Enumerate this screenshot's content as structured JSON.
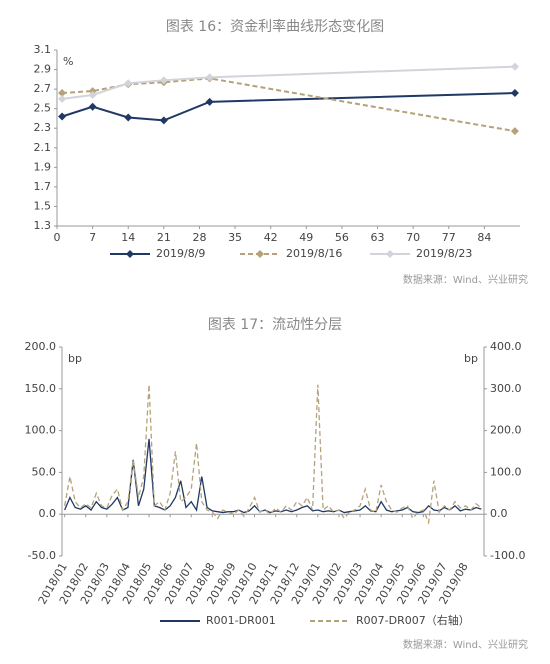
{
  "chart_data": [
    {
      "type": "line",
      "title": "图表 16：资金利率曲线形态变化图",
      "ylabel": "%",
      "x": [
        1,
        7,
        14,
        21,
        30,
        90
      ],
      "xlim": [
        0,
        91
      ],
      "xticks": [
        0,
        7,
        14,
        21,
        28,
        35,
        42,
        49,
        56,
        63,
        70,
        77,
        84
      ],
      "ylim": [
        1.3,
        3.1
      ],
      "yticks": [
        1.3,
        1.5,
        1.7,
        1.9,
        2.1,
        2.3,
        2.5,
        2.7,
        2.9,
        3.1
      ],
      "series": [
        {
          "name": "2019/8/9",
          "color": "#1f3864",
          "dashed": false,
          "values": [
            2.42,
            2.52,
            2.41,
            2.38,
            2.57,
            2.66
          ]
        },
        {
          "name": "2019/8/16",
          "color": "#b5a27a",
          "dashed": true,
          "values": [
            2.66,
            2.68,
            2.75,
            2.77,
            2.81,
            2.27
          ]
        },
        {
          "name": "2019/8/23",
          "color": "#d3d3dc",
          "dashed": false,
          "values": [
            2.6,
            2.64,
            2.76,
            2.79,
            2.82,
            2.93
          ]
        }
      ],
      "source": "数据来源：Wind、兴业研究"
    },
    {
      "type": "line",
      "title": "图表 17：流动性分层",
      "ylabel": "bp",
      "y2label": "bp",
      "categories": [
        "2018/01",
        null,
        null,
        null,
        "2018/02",
        null,
        null,
        null,
        "2018/03",
        null,
        null,
        null,
        "2018/04",
        null,
        null,
        null,
        "2018/05",
        null,
        null,
        null,
        "2018/06",
        null,
        null,
        null,
        "2018/07",
        null,
        null,
        null,
        "2018/08",
        null,
        null,
        null,
        "2018/09",
        null,
        null,
        null,
        "2018/10",
        null,
        null,
        null,
        "2018/11",
        null,
        null,
        null,
        "2018/12",
        null,
        null,
        null,
        "2019/01",
        null,
        null,
        null,
        "2019/02",
        null,
        null,
        null,
        "2019/03",
        null,
        null,
        null,
        "2019/04",
        null,
        null,
        null,
        "2019/05",
        null,
        null,
        null,
        "2019/06",
        null,
        null,
        null,
        "2019/07",
        null,
        null,
        null,
        "2019/08",
        null,
        null,
        null
      ],
      "ylim": [
        -50,
        200
      ],
      "yticks": [
        {
          "value": -50,
          "label": "-50.0"
        },
        {
          "value": 0,
          "label": "0.0"
        },
        {
          "value": 50,
          "label": "50.0"
        },
        {
          "value": 100,
          "label": "100.0"
        },
        {
          "value": 150,
          "label": "150.0"
        },
        {
          "value": 200,
          "label": "200.0"
        }
      ],
      "y2lim": [
        -100,
        400
      ],
      "y2ticks": [
        {
          "value": -100,
          "label": "-100.0"
        },
        {
          "value": 0,
          "label": "0.0"
        },
        {
          "value": 100,
          "label": "100.0"
        },
        {
          "value": 200,
          "label": "200.0"
        },
        {
          "value": 300,
          "label": "300.0"
        },
        {
          "value": 400,
          "label": "400.0"
        }
      ],
      "series": [
        {
          "name": "R001-DR001",
          "color": "#1f3864",
          "dashed": false,
          "values": [
            5,
            20,
            8,
            6,
            10,
            5,
            15,
            8,
            6,
            12,
            20,
            5,
            8,
            65,
            10,
            30,
            90,
            10,
            8,
            5,
            10,
            20,
            40,
            8,
            15,
            5,
            45,
            8,
            4,
            3,
            2,
            3,
            3,
            5,
            2,
            4,
            10,
            3,
            5,
            2,
            4,
            3,
            5,
            3,
            5,
            8,
            10,
            4,
            5,
            3,
            4,
            3,
            5,
            2,
            3,
            4,
            5,
            10,
            4,
            3,
            15,
            5,
            3,
            4,
            5,
            8,
            3,
            2,
            3,
            10,
            5,
            4,
            8,
            5,
            10,
            4,
            6,
            5,
            8,
            6
          ]
        },
        {
          "name": "R007-DR007（右轴）",
          "color": "#b5a27a",
          "dashed": true,
          "axis": "y2",
          "values": [
            20,
            90,
            30,
            15,
            25,
            15,
            50,
            20,
            15,
            45,
            60,
            10,
            30,
            130,
            40,
            90,
            310,
            20,
            30,
            10,
            50,
            150,
            30,
            40,
            60,
            170,
            30,
            10,
            5,
            -10,
            10,
            5,
            0,
            10,
            -5,
            15,
            40,
            5,
            10,
            0,
            15,
            5,
            20,
            10,
            30,
            20,
            40,
            10,
            310,
            10,
            20,
            5,
            10,
            -10,
            5,
            10,
            20,
            60,
            10,
            5,
            70,
            30,
            10,
            5,
            15,
            20,
            -10,
            5,
            10,
            -20,
            80,
            5,
            20,
            10,
            30,
            15,
            20,
            10,
            25,
            15
          ]
        }
      ],
      "source": "数据来源：Wind、兴业研究"
    }
  ]
}
